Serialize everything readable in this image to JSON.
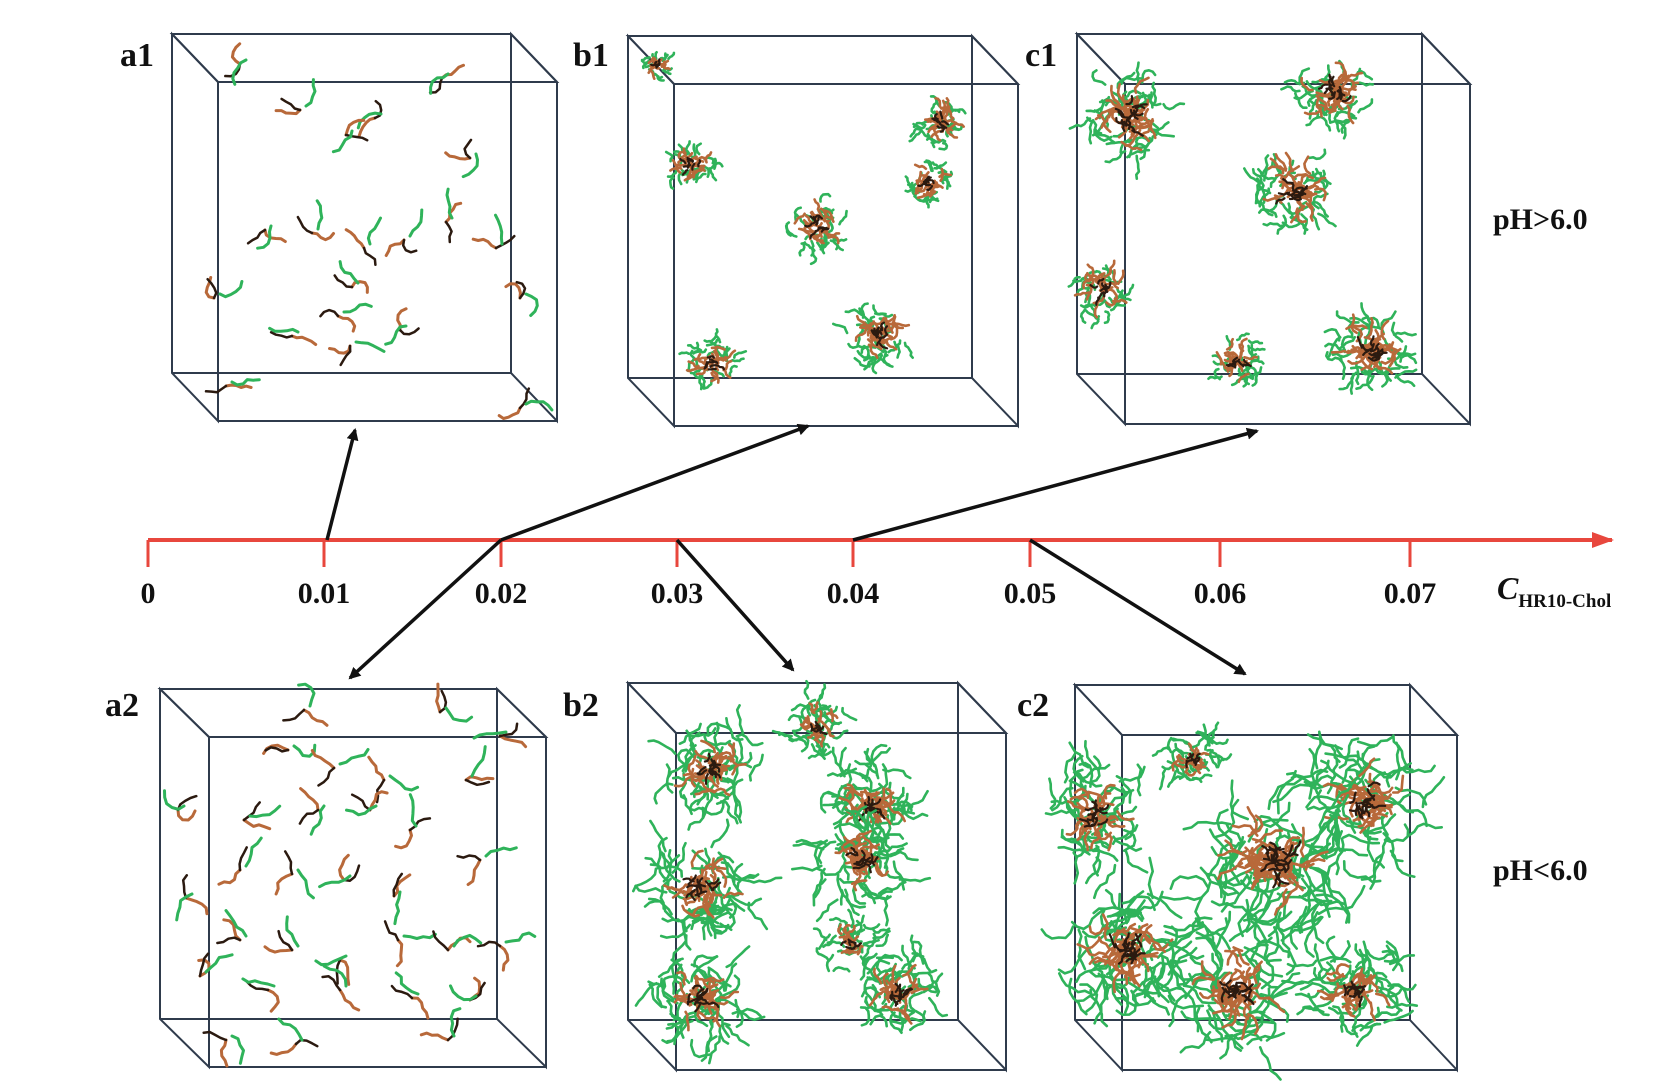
{
  "axis": {
    "ticks": [
      "0",
      "0.01",
      "0.02",
      "0.03",
      "0.04",
      "0.05",
      "0.06",
      "0.07"
    ],
    "label_main": "C",
    "label_sub": "HR10-Chol",
    "line_color": "#e8473d"
  },
  "conditions": {
    "top": "pH>6.0",
    "bottom": "pH<6.0"
  },
  "panels": [
    {
      "id": "a1",
      "label": "a1",
      "row": "top",
      "state": "dispersed unimers"
    },
    {
      "id": "b1",
      "label": "b1",
      "row": "top",
      "state": "small spherical micelles"
    },
    {
      "id": "c1",
      "label": "c1",
      "row": "top",
      "state": "spherical micelles"
    },
    {
      "id": "a2",
      "label": "a2",
      "row": "bottom",
      "state": "dispersed aggregates"
    },
    {
      "id": "b2",
      "label": "b2",
      "row": "bottom",
      "state": "loose micelles"
    },
    {
      "id": "c2",
      "label": "c2",
      "row": "bottom",
      "state": "large loose micelles"
    }
  ],
  "colors": {
    "hydrophilic": "#2fb35a",
    "hydrophobic": "#b8693a",
    "core": "#2b1a10",
    "box_edge": "#2f3b4c",
    "arrow": "#111111"
  }
}
